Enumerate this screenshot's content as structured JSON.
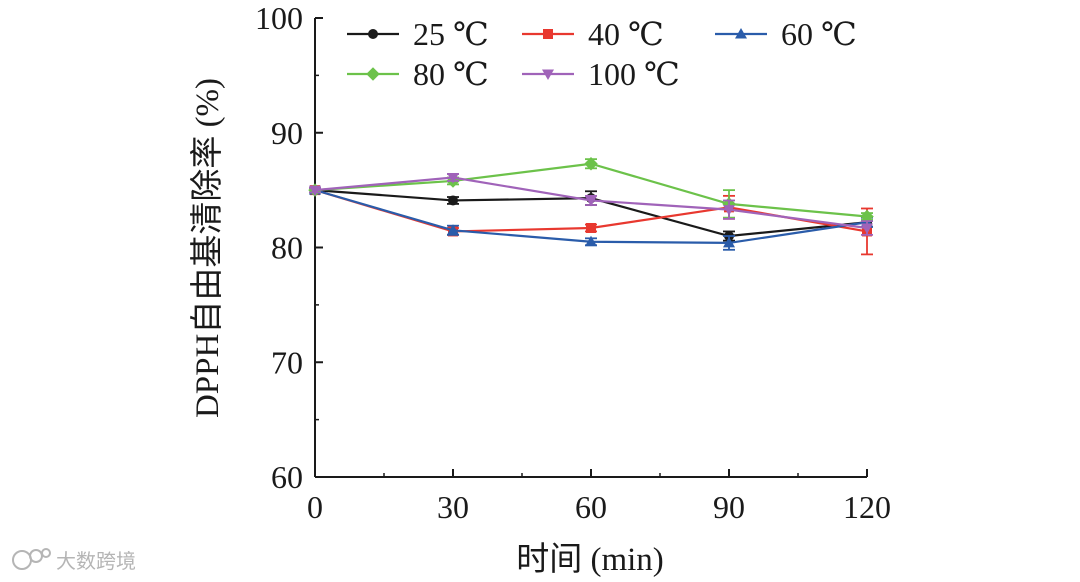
{
  "chart_data": {
    "type": "line",
    "title": "",
    "xlabel": "时间 (min)",
    "ylabel": "DPPH自由基清除率 (%)",
    "x": [
      0,
      30,
      60,
      90,
      120
    ],
    "xticks": [
      "0",
      "30",
      "60",
      "90",
      "120"
    ],
    "yticks": [
      "60",
      "70",
      "80",
      "90",
      "100"
    ],
    "xlim": [
      0,
      120
    ],
    "ylim": [
      60,
      100
    ],
    "grid": false,
    "legend_position": "top",
    "series": [
      {
        "name": "25 ℃",
        "color": "#1a1a1a",
        "marker": "circle",
        "values": [
          85.0,
          84.1,
          84.3,
          81.0,
          82.2
        ],
        "errors": [
          0.2,
          0.3,
          0.6,
          0.4,
          0.4
        ]
      },
      {
        "name": "40 ℃",
        "color": "#e8382f",
        "marker": "square",
        "values": [
          85.0,
          81.4,
          81.7,
          83.5,
          81.4
        ],
        "errors": [
          0.2,
          0.3,
          0.3,
          1.0,
          2.0
        ]
      },
      {
        "name": "60 ℃",
        "color": "#2a5caa",
        "marker": "triangle-up",
        "values": [
          85.0,
          81.5,
          80.5,
          80.4,
          82.2
        ],
        "errors": [
          0.2,
          0.4,
          0.3,
          0.6,
          0.4
        ]
      },
      {
        "name": "80 ℃",
        "color": "#6cc24a",
        "marker": "diamond",
        "values": [
          85.0,
          85.8,
          87.3,
          83.8,
          82.7
        ],
        "errors": [
          0.2,
          0.3,
          0.4,
          1.2,
          0.3
        ]
      },
      {
        "name": "100 ℃",
        "color": "#a063b9",
        "marker": "triangle-down",
        "values": [
          85.0,
          86.1,
          84.1,
          83.3,
          81.7
        ],
        "errors": [
          0.2,
          0.3,
          0.4,
          0.8,
          0.6
        ]
      }
    ],
    "watermark": "大数跨境"
  }
}
